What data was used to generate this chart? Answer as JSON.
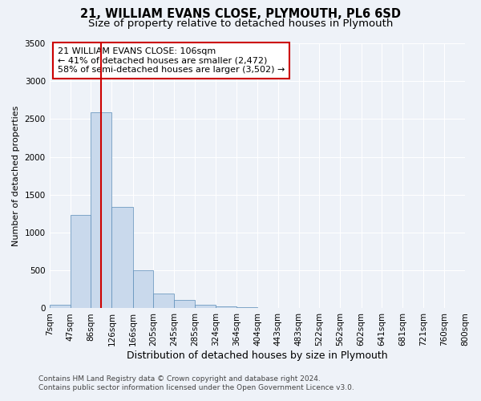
{
  "title": "21, WILLIAM EVANS CLOSE, PLYMOUTH, PL6 6SD",
  "subtitle": "Size of property relative to detached houses in Plymouth",
  "xlabel": "Distribution of detached houses by size in Plymouth",
  "ylabel": "Number of detached properties",
  "bar_color": "#c9d9ec",
  "bar_edge_color": "#5b8db8",
  "bar_left_edges": [
    7,
    47,
    86,
    126,
    166,
    205,
    245,
    285,
    324,
    364,
    404,
    443,
    483,
    522,
    562,
    602,
    641,
    681,
    721,
    760
  ],
  "bar_heights": [
    50,
    1230,
    2590,
    1340,
    500,
    200,
    110,
    50,
    30,
    20,
    10,
    5,
    2,
    0,
    0,
    0,
    0,
    0,
    0,
    0
  ],
  "bar_widths": [
    40,
    39,
    40,
    40,
    39,
    40,
    40,
    39,
    40,
    40,
    39,
    40,
    39,
    40,
    40,
    39,
    40,
    40,
    39,
    40
  ],
  "x_tick_labels": [
    "7sqm",
    "47sqm",
    "86sqm",
    "126sqm",
    "166sqm",
    "205sqm",
    "245sqm",
    "285sqm",
    "324sqm",
    "364sqm",
    "404sqm",
    "443sqm",
    "483sqm",
    "522sqm",
    "562sqm",
    "602sqm",
    "641sqm",
    "681sqm",
    "721sqm",
    "760sqm",
    "800sqm"
  ],
  "x_tick_positions": [
    7,
    47,
    86,
    126,
    166,
    205,
    245,
    285,
    324,
    364,
    404,
    443,
    483,
    522,
    562,
    602,
    641,
    681,
    721,
    760,
    800
  ],
  "ylim": [
    0,
    3500
  ],
  "xlim": [
    7,
    800
  ],
  "vline_x": 106,
  "vline_color": "#cc0000",
  "annotation_title": "21 WILLIAM EVANS CLOSE: 106sqm",
  "annotation_line1": "← 41% of detached houses are smaller (2,472)",
  "annotation_line2": "58% of semi-detached houses are larger (3,502) →",
  "annotation_box_color": "#cc0000",
  "footnote1": "Contains HM Land Registry data © Crown copyright and database right 2024.",
  "footnote2": "Contains public sector information licensed under the Open Government Licence v3.0.",
  "title_fontsize": 10.5,
  "subtitle_fontsize": 9.5,
  "xlabel_fontsize": 9,
  "ylabel_fontsize": 8,
  "tick_fontsize": 7.5,
  "annotation_fontsize": 8,
  "footnote_fontsize": 6.5,
  "background_color": "#eef2f8",
  "plot_bg_color": "#eef2f8"
}
